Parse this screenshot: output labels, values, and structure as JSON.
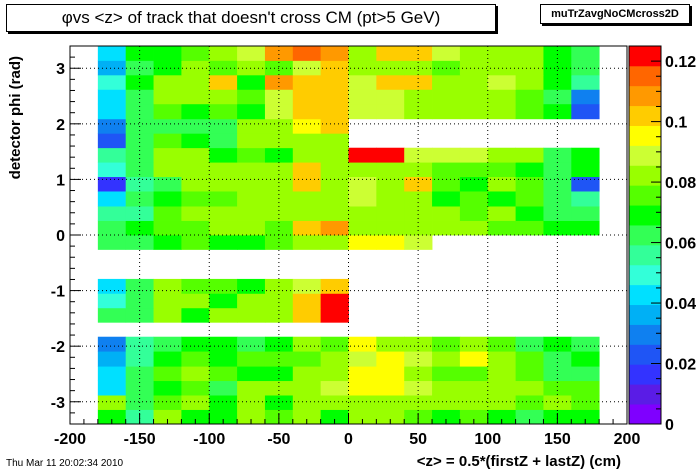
{
  "title_parts": {
    "phi": "φ",
    "rest": " vs <z> of track that doesn't cross CM (pt>5 GeV)"
  },
  "stat_box": "muTrZavgNoCMcross2D",
  "timestamp": "Thu Mar 11 20:02:34 2010",
  "chart_data": {
    "type": "heatmap",
    "xlabel": "<z> = 0.5*(firstZ + lastZ) (cm)",
    "ylabel": "detector phi (rad)",
    "xlim": [
      -200,
      200
    ],
    "ylim": [
      -3.4,
      3.4
    ],
    "zlim": [
      0,
      0.125
    ],
    "x_ticks": [
      "-200",
      "-150",
      "-100",
      "-50",
      "0",
      "50",
      "100",
      "150",
      "200"
    ],
    "y_ticks": [
      "-3",
      "-2",
      "-1",
      "0",
      "1",
      "2",
      "3"
    ],
    "z_ticks": [
      "0",
      "0.02",
      "0.04",
      "0.06",
      "0.08",
      "0.1",
      "0.12"
    ],
    "grid": true,
    "x_bin_edges": [
      -180,
      -160,
      -140,
      -120,
      -100,
      -80,
      -60,
      -40,
      -20,
      0,
      20,
      40,
      60,
      80,
      100,
      120,
      140,
      160,
      180
    ],
    "y_bin_edges": [
      -3.4,
      -3.14,
      -2.88,
      -2.62,
      -2.36,
      -2.09,
      -1.83,
      -1.57,
      -1.31,
      -1.05,
      -0.79,
      -0.52,
      -0.26,
      0,
      0.26,
      0.52,
      0.79,
      1.05,
      1.31,
      1.57,
      1.83,
      2.09,
      2.36,
      2.62,
      2.88,
      3.14,
      3.4
    ],
    "z_values": [
      [
        0.07,
        0.055,
        0.08,
        0.07,
        0.07,
        0.08,
        0.075,
        0.08,
        0.07,
        0.08,
        0.08,
        0.075,
        0.07,
        0.075,
        0.07,
        0.065,
        0.07,
        0.07
      ],
      [
        0.08,
        0.065,
        0.075,
        0.08,
        0.07,
        0.08,
        0.07,
        0.08,
        0.08,
        0.08,
        0.085,
        0.08,
        0.08,
        0.08,
        0.08,
        0.075,
        0.08,
        0.075
      ],
      [
        0.045,
        0.06,
        0.07,
        0.075,
        0.065,
        0.08,
        0.08,
        0.085,
        0.09,
        0.095,
        0.095,
        0.09,
        0.08,
        0.085,
        0.08,
        0.08,
        0.075,
        0.075
      ],
      [
        0.04,
        0.065,
        0.075,
        0.08,
        0.075,
        0.07,
        0.07,
        0.085,
        0.08,
        0.095,
        0.095,
        0.085,
        0.075,
        0.075,
        0.08,
        0.075,
        0.065,
        0.065
      ],
      [
        0.035,
        0.055,
        0.07,
        0.075,
        0.07,
        0.075,
        0.075,
        0.075,
        0.08,
        0.09,
        0.095,
        0.09,
        0.085,
        0.095,
        0.085,
        0.075,
        0.06,
        0.07
      ],
      [
        0.03,
        0.055,
        0.065,
        0.07,
        0.07,
        0.065,
        0.07,
        0.08,
        0.075,
        0.095,
        0.08,
        0.08,
        0.075,
        0.08,
        0.075,
        0.065,
        0.07,
        0.065
      ],
      [
        null,
        null,
        null,
        null,
        null,
        null,
        null,
        null,
        null,
        null,
        null,
        null,
        null,
        null,
        null,
        null,
        null,
        null
      ],
      [
        0.065,
        0.06,
        0.08,
        0.07,
        0.08,
        0.085,
        0.085,
        0.105,
        0.12,
        null,
        null,
        null,
        null,
        null,
        null,
        null,
        null,
        null
      ],
      [
        0.05,
        0.06,
        0.085,
        0.085,
        0.07,
        0.08,
        0.08,
        0.1,
        0.12,
        null,
        null,
        null,
        null,
        null,
        null,
        null,
        null,
        null
      ],
      [
        0.045,
        0.065,
        0.08,
        0.075,
        0.075,
        0.07,
        0.08,
        0.09,
        0.1,
        null,
        null,
        null,
        null,
        null,
        null,
        null,
        null,
        null
      ],
      [
        null,
        null,
        null,
        null,
        null,
        null,
        null,
        null,
        null,
        null,
        null,
        null,
        null,
        null,
        null,
        null,
        null,
        null
      ],
      [
        null,
        null,
        null,
        null,
        null,
        null,
        null,
        null,
        null,
        null,
        null,
        null,
        null,
        null,
        null,
        null,
        null,
        null
      ],
      [
        0.06,
        0.065,
        0.07,
        0.075,
        0.07,
        0.07,
        0.075,
        0.08,
        0.085,
        0.095,
        0.095,
        0.09,
        null,
        null,
        null,
        null,
        null,
        null
      ],
      [
        0.06,
        0.07,
        0.075,
        0.075,
        0.08,
        0.085,
        0.075,
        0.1,
        0.11,
        0.085,
        0.085,
        0.08,
        0.08,
        0.08,
        0.075,
        0.075,
        0.07,
        0.07
      ],
      [
        0.055,
        0.055,
        0.075,
        0.08,
        0.08,
        0.08,
        0.085,
        0.08,
        0.085,
        0.085,
        0.085,
        0.08,
        0.08,
        0.075,
        0.08,
        0.07,
        0.065,
        0.06
      ],
      [
        0.045,
        0.06,
        0.07,
        0.075,
        0.075,
        0.085,
        0.08,
        0.085,
        0.08,
        0.09,
        0.085,
        0.08,
        0.07,
        0.075,
        0.07,
        0.075,
        0.06,
        0.055
      ],
      [
        0.015,
        0.055,
        0.065,
        0.08,
        0.08,
        0.08,
        0.08,
        0.105,
        0.085,
        0.09,
        0.08,
        0.1,
        0.075,
        0.07,
        0.08,
        0.075,
        0.06,
        0.02
      ],
      [
        0.05,
        0.06,
        0.08,
        0.08,
        0.085,
        0.08,
        0.08,
        0.1,
        0.085,
        0.085,
        0.085,
        0.085,
        0.075,
        0.075,
        0.075,
        0.07,
        0.06,
        0.07
      ],
      [
        0.055,
        0.065,
        0.08,
        0.08,
        0.07,
        0.075,
        0.07,
        0.08,
        0.085,
        0.125,
        0.125,
        0.09,
        0.09,
        0.09,
        0.085,
        0.08,
        0.06,
        0.07
      ],
      [
        0.025,
        0.065,
        0.075,
        0.07,
        0.065,
        0.08,
        0.08,
        0.085,
        0.08,
        null,
        null,
        null,
        null,
        null,
        null,
        null,
        null,
        null
      ],
      [
        0.03,
        0.06,
        0.065,
        0.065,
        0.065,
        0.08,
        0.085,
        0.095,
        0.1,
        null,
        null,
        null,
        null,
        null,
        null,
        null,
        null,
        null
      ],
      [
        0.04,
        0.065,
        0.075,
        0.07,
        0.075,
        0.07,
        0.09,
        0.105,
        0.105,
        0.09,
        0.09,
        0.085,
        0.08,
        0.08,
        0.08,
        0.075,
        0.07,
        0.025
      ],
      [
        0.04,
        0.065,
        0.085,
        0.08,
        0.08,
        0.075,
        0.09,
        0.105,
        0.105,
        0.09,
        0.09,
        0.085,
        0.08,
        0.08,
        0.08,
        0.075,
        0.065,
        0.03
      ],
      [
        0.05,
        0.07,
        0.08,
        0.08,
        0.1,
        0.07,
        0.11,
        0.105,
        0.105,
        0.09,
        0.1,
        0.1,
        0.085,
        0.08,
        0.09,
        0.08,
        0.07,
        0.055
      ],
      [
        0.035,
        0.065,
        0.07,
        0.08,
        0.075,
        0.08,
        0.075,
        0.09,
        0.1,
        0.08,
        0.08,
        0.085,
        0.075,
        0.085,
        0.08,
        0.08,
        0.07,
        0.065
      ],
      [
        0.04,
        0.07,
        0.07,
        0.075,
        0.08,
        0.09,
        0.11,
        0.115,
        0.11,
        0.085,
        0.1,
        0.1,
        0.09,
        0.085,
        0.085,
        0.08,
        0.07,
        0.06
      ]
    ]
  }
}
